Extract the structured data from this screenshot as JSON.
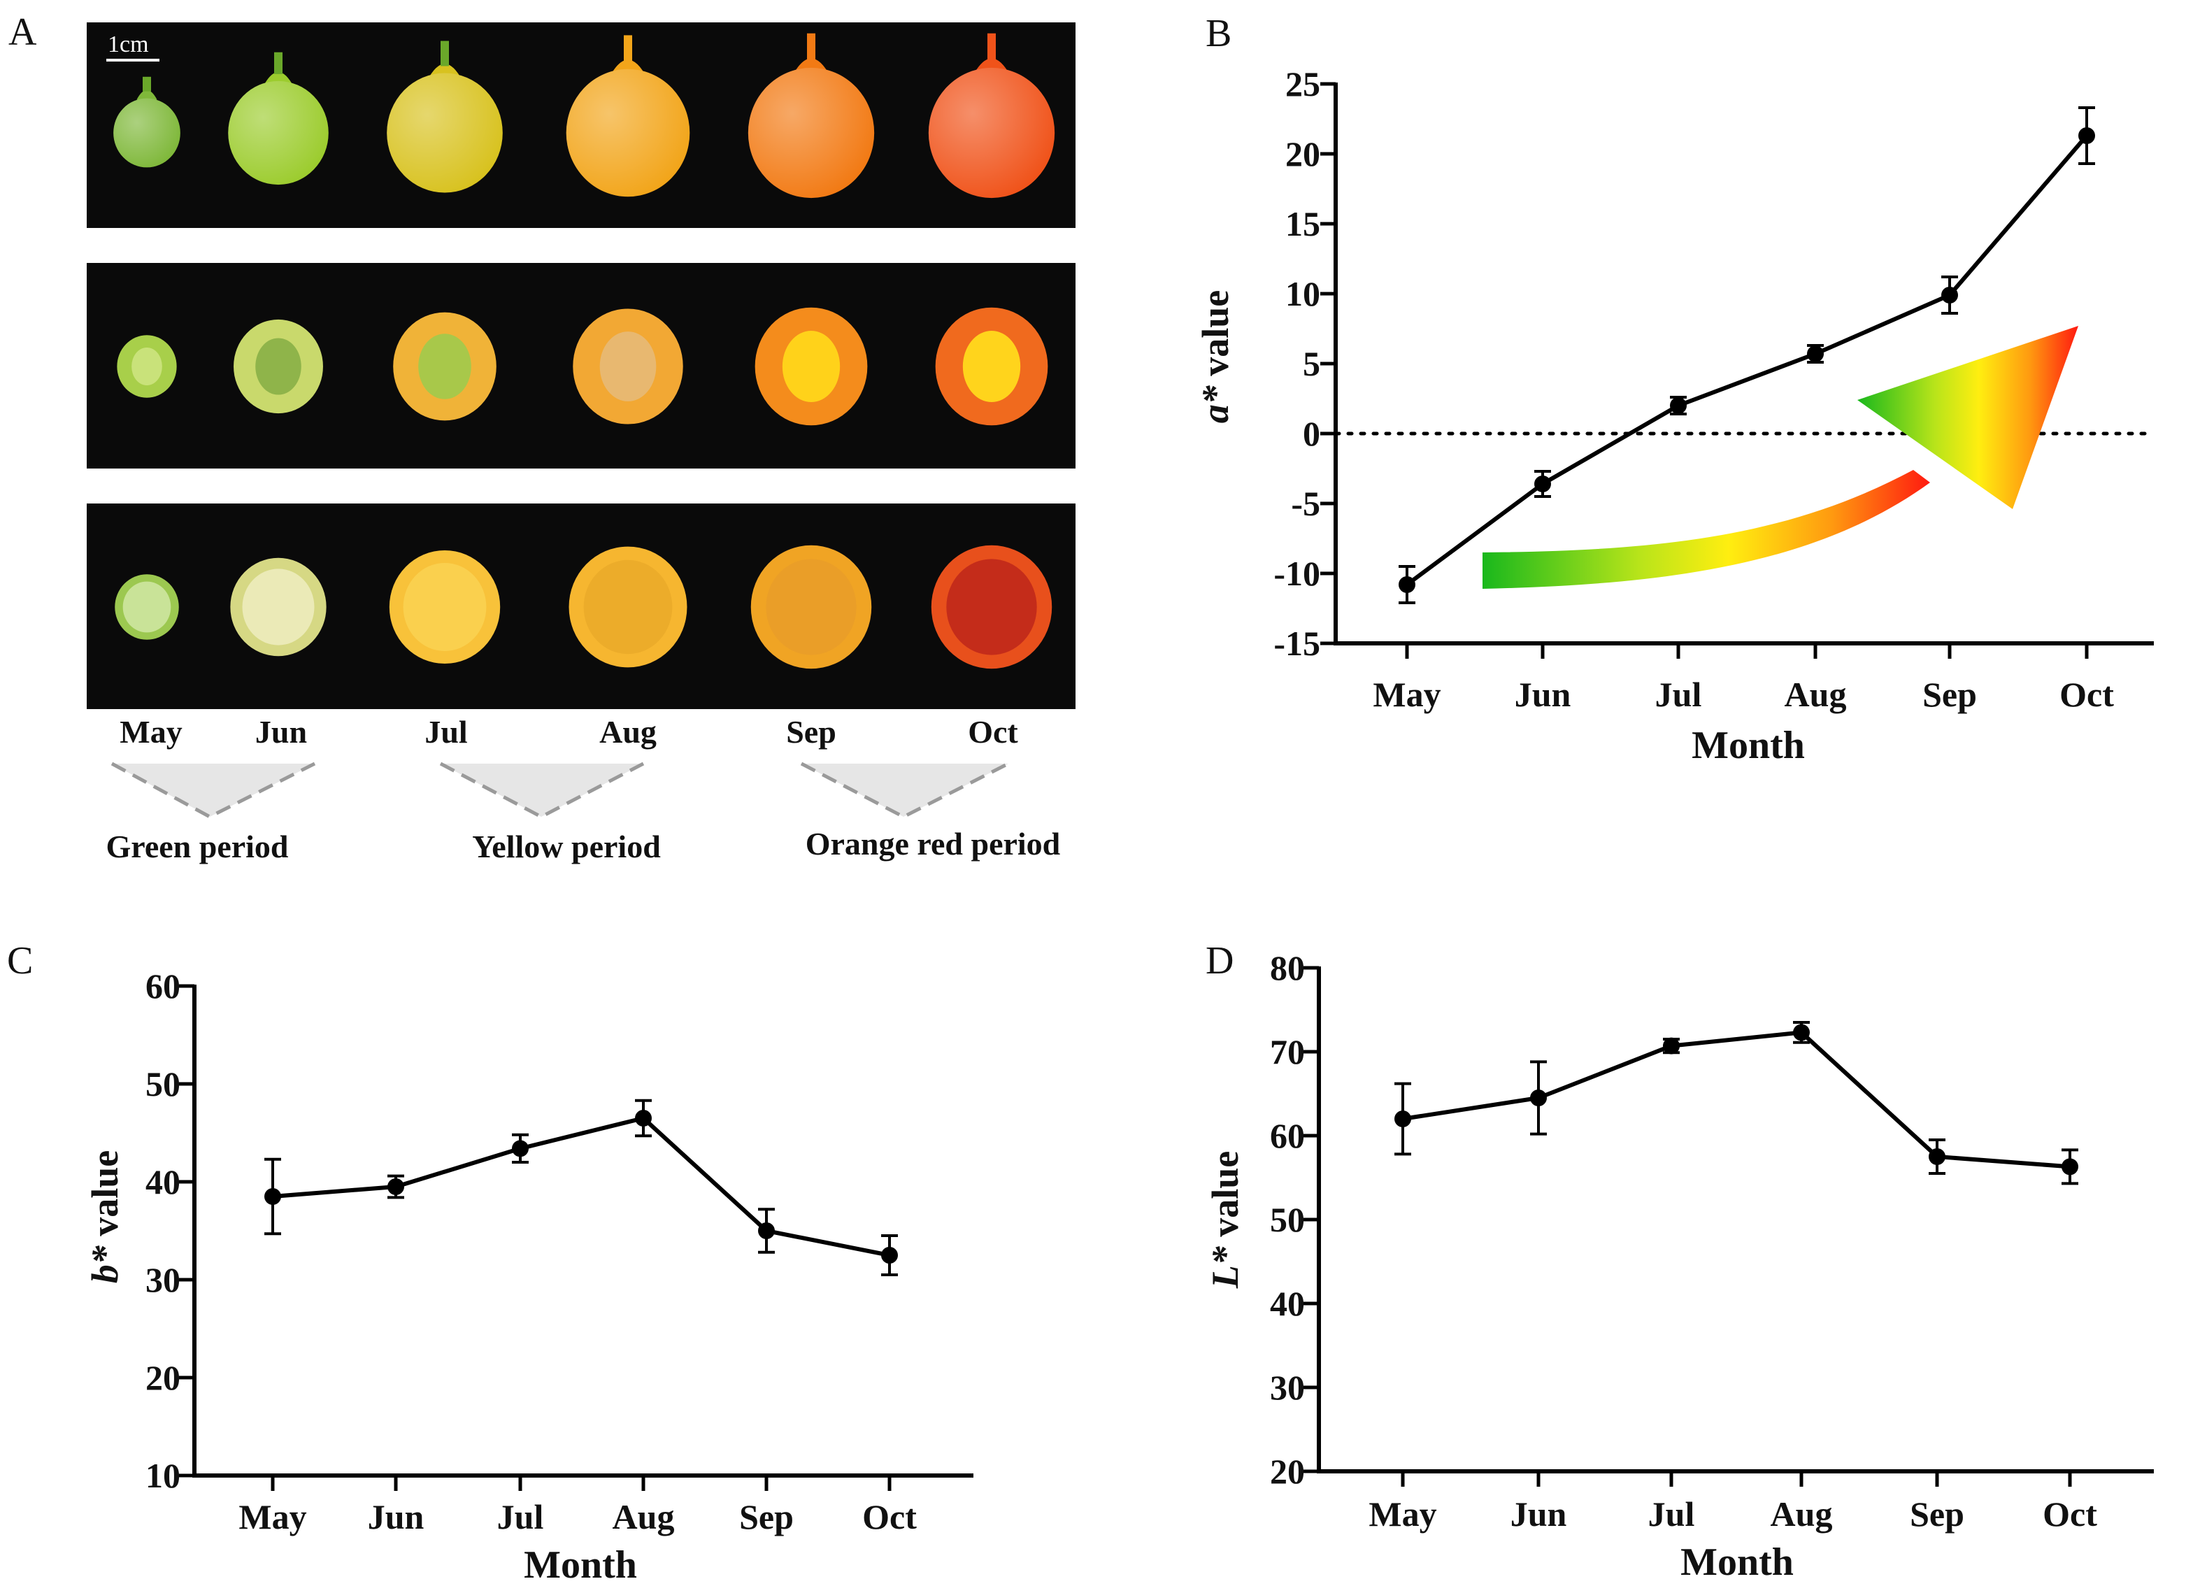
{
  "panel_a": {
    "letter": "A",
    "scale_bar": "1cm",
    "months": [
      "May",
      "Jun",
      "Jul",
      "Aug",
      "Sep",
      "Oct"
    ],
    "periods": [
      "Green period",
      "Yellow period",
      "Orange red period"
    ],
    "colors": {
      "whole": [
        "#7fb83a",
        "#9ccc2e",
        "#d8c21f",
        "#f2a51a",
        "#f27a14",
        "#f0531a"
      ],
      "half": [
        "#a8cf4a",
        "#c9d96c",
        "#f0b338",
        "#f2a834",
        "#f48c1c",
        "#f06a1e"
      ],
      "seed": [
        "#c9e27a",
        "#8fb44a",
        "#a8c84a",
        "#e8b870",
        "#ffd21a",
        "#ffd41c"
      ],
      "cup": [
        "#9cc850",
        "#d6d884",
        "#f8c23a",
        "#f6b630",
        "#f0a424",
        "#e8501c"
      ],
      "cup_inner": [
        "#d8ecb0",
        "#f2f0c8",
        "#fbd456",
        "#e8a828",
        "#e89c2a",
        "#b8201a"
      ]
    }
  },
  "panel_letters": {
    "b": "B",
    "c": "C",
    "d": "D"
  },
  "chart_data": [
    {
      "id": "b",
      "type": "line",
      "title": "",
      "xlabel": "Month",
      "ylabel_italic": "a*",
      "ylabel_rest": " value",
      "categories": [
        "May",
        "Jun",
        "Jul",
        "Aug",
        "Sep",
        "Oct"
      ],
      "values": [
        -10.8,
        -3.6,
        2.0,
        5.7,
        9.9,
        21.3
      ],
      "errors": [
        1.3,
        0.9,
        0.6,
        0.6,
        1.3,
        2.0
      ],
      "ylim": [
        -15,
        25
      ],
      "yticks": [
        -15,
        -10,
        -5,
        0,
        5,
        10,
        15,
        20,
        25
      ],
      "zero_line": true,
      "annotation": "green-to-red arrow"
    },
    {
      "id": "c",
      "type": "line",
      "title": "",
      "xlabel": "Month",
      "ylabel_italic": "b*",
      "ylabel_rest": " value",
      "categories": [
        "May",
        "Jun",
        "Jul",
        "Aug",
        "Sep",
        "Oct"
      ],
      "values": [
        38.5,
        39.5,
        43.4,
        46.5,
        35.0,
        32.5
      ],
      "errors": [
        3.8,
        1.1,
        1.4,
        1.8,
        2.2,
        2.0
      ],
      "ylim": [
        10,
        60
      ],
      "yticks": [
        10,
        20,
        30,
        40,
        50,
        60
      ]
    },
    {
      "id": "d",
      "type": "line",
      "title": "",
      "xlabel": "Month",
      "ylabel_italic": "L*",
      "ylabel_rest": " value",
      "categories": [
        "May",
        "Jun",
        "Jul",
        "Aug",
        "Sep",
        "Oct"
      ],
      "values": [
        62.0,
        64.5,
        70.7,
        72.3,
        57.5,
        56.3
      ],
      "errors": [
        4.2,
        4.3,
        0.8,
        1.2,
        2.0,
        2.0
      ],
      "ylim": [
        20,
        80
      ],
      "yticks": [
        20,
        30,
        40,
        50,
        60,
        70,
        80
      ]
    }
  ]
}
